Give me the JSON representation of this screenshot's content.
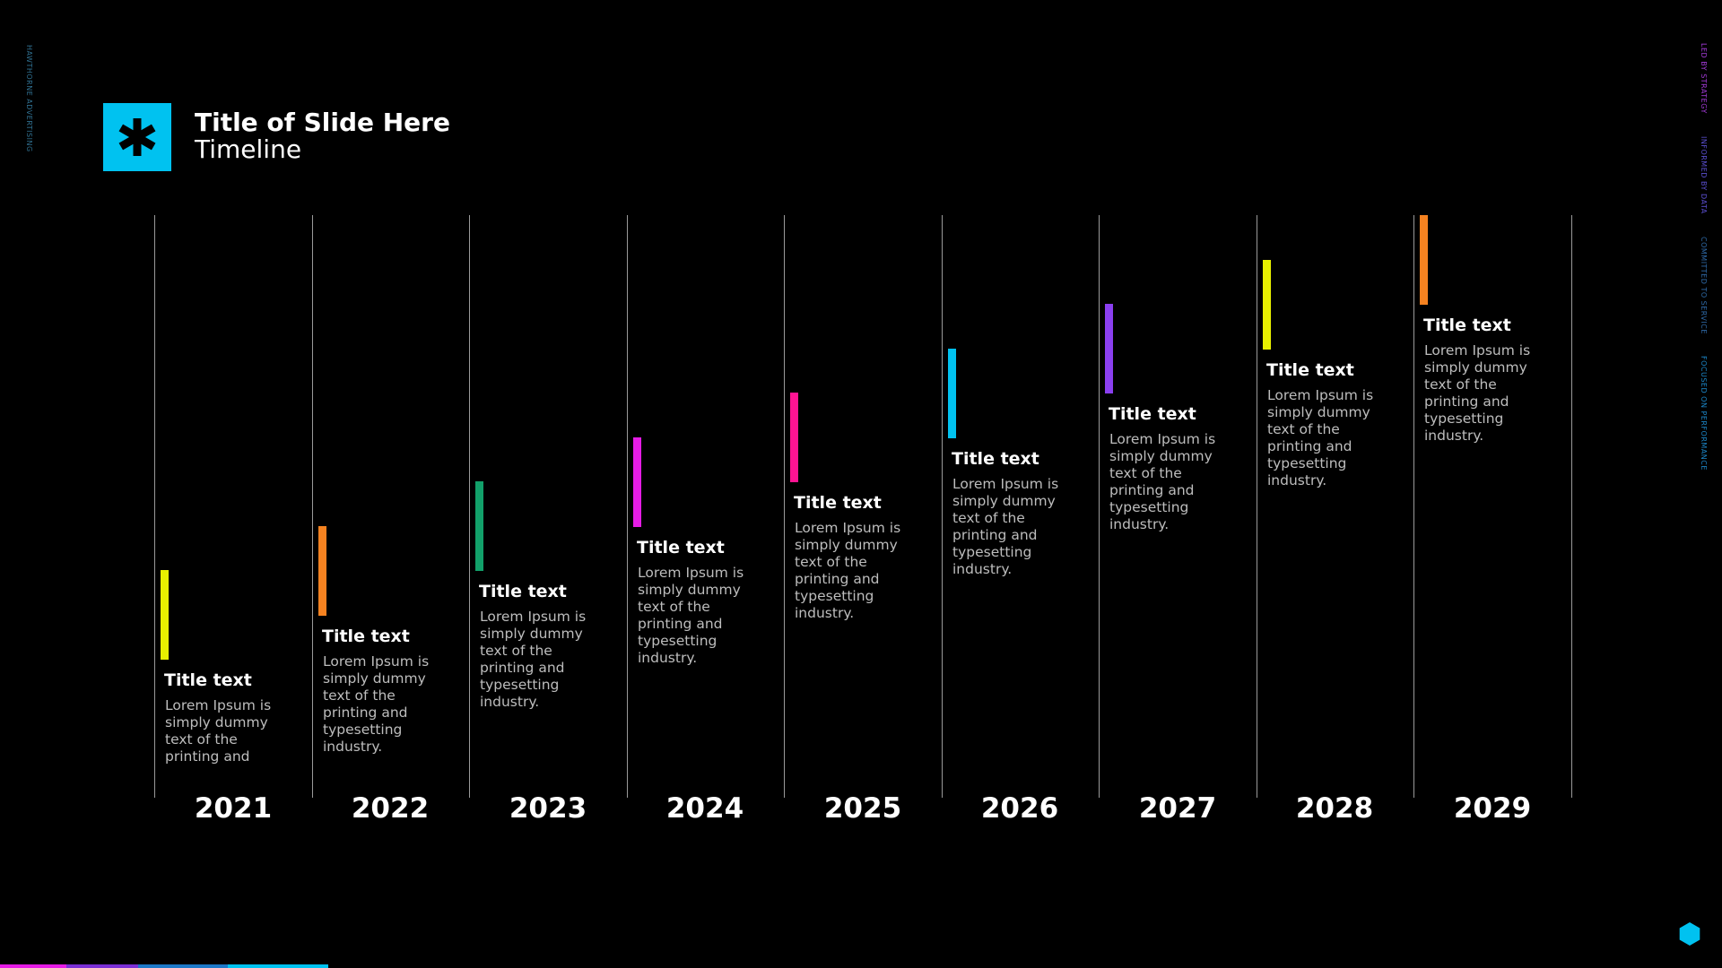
{
  "side": {
    "left_text": "HAWTHORNE ADVERTISING",
    "right_items": [
      {
        "label": "LED BY STRATEGY",
        "color": "#a23ad6"
      },
      {
        "label": "INFORMED BY DATA",
        "color": "#5b4fd0"
      },
      {
        "label": "COMMITTED TO SERVICE",
        "color": "#2f6aa8"
      },
      {
        "label": "FOCUSED ON PERFORMANCE",
        "color": "#1c86c8"
      }
    ]
  },
  "header": {
    "logo_icon": "asterisk-icon",
    "logo_color": "#00c2f0",
    "title": "Title of Slide Here",
    "subtitle": "Timeline"
  },
  "timeline": [
    {
      "year": "2021",
      "title": "Title text",
      "body": "Lorem Ipsum is simply dummy text of the printing and",
      "color": "#e8f000"
    },
    {
      "year": "2022",
      "title": "Title text",
      "body": "Lorem Ipsum is simply dummy text of the printing and typesetting industry.",
      "color": "#f58220"
    },
    {
      "year": "2023",
      "title": "Title text",
      "body": "Lorem Ipsum is simply dummy text of the printing and typesetting industry.",
      "color": "#12a06a"
    },
    {
      "year": "2024",
      "title": "Title text",
      "body": "Lorem Ipsum is simply dummy text of the printing and typesetting industry.",
      "color": "#e61ce6"
    },
    {
      "year": "2025",
      "title": "Title text",
      "body": "Lorem Ipsum is simply dummy text of the printing and typesetting industry.",
      "color": "#ff1493"
    },
    {
      "year": "2026",
      "title": "Title text",
      "body": "Lorem Ipsum is simply dummy text of the printing and typesetting industry.",
      "color": "#00c2f0"
    },
    {
      "year": "2027",
      "title": "Title text",
      "body": "Lorem Ipsum is simply dummy text of the printing and typesetting industry.",
      "color": "#8a3ff0"
    },
    {
      "year": "2028",
      "title": "Title text",
      "body": "Lorem Ipsum is simply dummy text of the printing and typesetting industry.",
      "color": "#e8f000"
    },
    {
      "year": "2029",
      "title": "Title text",
      "body": "Lorem Ipsum is simply dummy text of the printing and typesetting industry.",
      "color": "#f58220"
    }
  ],
  "bottom_bar_colors": [
    "#e61ce6",
    "#7b2fd6",
    "#1c78c8",
    "#00c2f0"
  ],
  "corner_icon": "hexagon-icon",
  "corner_icon_color": "#00c2f0"
}
